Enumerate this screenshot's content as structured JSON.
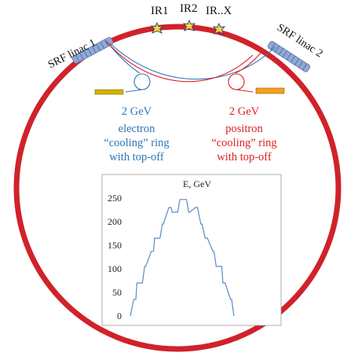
{
  "labels": {
    "linac_left": "SRF linac 1",
    "linac_right": "SRF linac 2",
    "ir1": "IR1",
    "ir2": "IR2",
    "irx": "IR..X"
  },
  "electron_ring": {
    "lines": [
      "2 GeV",
      "electron",
      "“cooling” ring",
      "with top-off"
    ],
    "color": "#2e75b6"
  },
  "positron_ring": {
    "lines": [
      "2 GeV",
      "positron",
      "“cooling” ring",
      "with top-off"
    ],
    "color": "#e02020"
  },
  "colors": {
    "main_ring": "#d0222a",
    "linac": "#8fa8d8",
    "injector_left": "#d4b000",
    "injector_right": "#f2a21b",
    "ir_star": "#ffd23a"
  },
  "chart_data": {
    "type": "line",
    "title": "E, GeV",
    "xlabel": "",
    "ylabel": "",
    "ylim": [
      0,
      250
    ],
    "yticks": [
      0,
      50,
      100,
      150,
      200,
      250
    ],
    "grid": false,
    "series": [
      {
        "color": "#5b8cc4",
        "x": [
          0,
          1.5,
          2.5,
          3,
          5.5,
          6.5,
          7,
          9.5,
          10.5,
          11,
          13.5,
          14.5,
          15,
          17.5,
          18.5,
          19,
          21.5,
          22.5,
          23,
          25.5,
          26.5,
          27,
          29.5,
          30.5,
          32,
          32.5,
          34,
          35,
          37.5,
          38,
          39,
          41.5,
          42,
          43,
          45.5,
          46,
          47,
          49.5,
          50,
          51,
          53.5,
          54,
          55,
          57.5,
          58,
          59,
          61.5,
          62,
          63,
          64.5
        ],
        "y": [
          0,
          35,
          35,
          70,
          70,
          105,
          105,
          137,
          137,
          165,
          165,
          195,
          195,
          230,
          230,
          220,
          220,
          247,
          247,
          247,
          220,
          220,
          230,
          230,
          195,
          195,
          165,
          165,
          137,
          137,
          105,
          105,
          70,
          70,
          35,
          35,
          0,
          0,
          0,
          0,
          0,
          0,
          0,
          0,
          0,
          0,
          0,
          0,
          0,
          0
        ]
      }
    ]
  }
}
